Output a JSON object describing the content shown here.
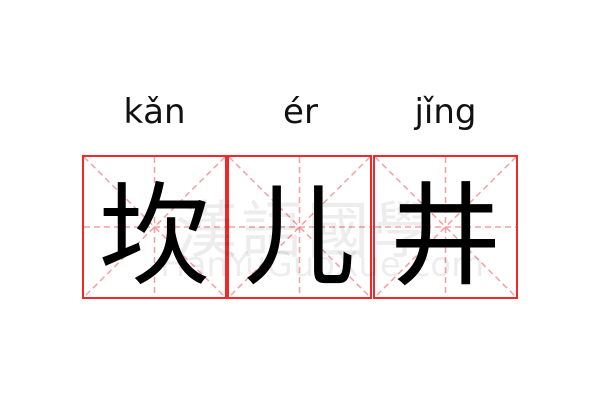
{
  "entries": [
    {
      "pinyin": "kǎn",
      "char": "坎"
    },
    {
      "pinyin": "ér",
      "char": "儿"
    },
    {
      "pinyin": "jǐng",
      "char": "井"
    }
  ],
  "watermark": {
    "chars": "漢語國學",
    "site": "HanYuGuoXue.com"
  },
  "colors": {
    "border": "#f02828",
    "guide": "#f5a0a0"
  }
}
